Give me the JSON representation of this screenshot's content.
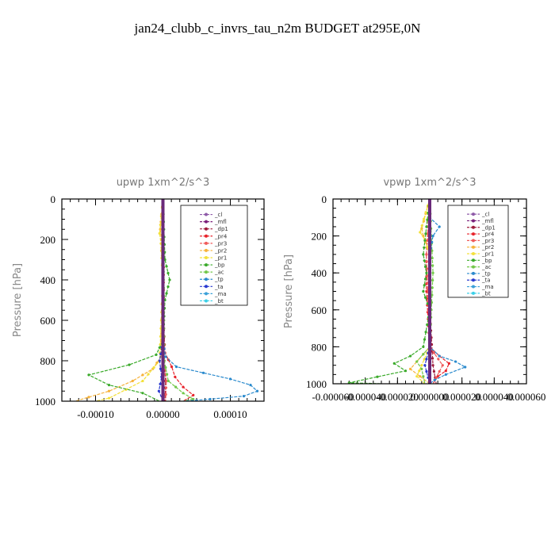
{
  "title": "jan24_clubb_c_invrs_tau_n2m  BUDGET at295E,0N",
  "legend_labels": [
    "_cl",
    "_mfl",
    "_dp1",
    "_pr4",
    "_pr3",
    "_pr2",
    "_pr1",
    "_bp",
    "_ac",
    "_tp",
    "_ta",
    "_ma",
    "_bt"
  ],
  "colors": {
    "_cl": "#8e5aa8",
    "_mfl": "#7a1f7a",
    "_dp1": "#9e1c3c",
    "_pr4": "#e8222a",
    "_pr3": "#f05a5a",
    "_pr2": "#f6b23a",
    "_pr1": "#f3e03a",
    "_bp": "#3aaa2a",
    "_ac": "#72c84a",
    "_tp": "#2a8acd",
    "_ta": "#2a3ad0",
    "_ma": "#3aa0d8",
    "_bt": "#3ad0e8"
  },
  "chart_data": [
    {
      "type": "line",
      "title": "upwp   1xm^2/s^3",
      "ylabel": "Pressure [hPa]",
      "ylim": [
        1000,
        0
      ],
      "xlim": [
        -0.00015,
        0.00015
      ],
      "xticks": [
        "-0.00010",
        "0.00000",
        "0.00010"
      ],
      "xtick_values": [
        -0.0001,
        0,
        0.0001
      ],
      "yticks": [
        "0",
        "200",
        "400",
        "600",
        "800",
        "1000"
      ],
      "legend_position": "top-right",
      "series": [
        {
          "name": "_cl",
          "points": [
            [
              0,
              0
            ],
            [
              0,
              1000
            ]
          ]
        },
        {
          "name": "_mfl",
          "points": [
            [
              0,
              0
            ],
            [
              0,
              1000
            ]
          ]
        },
        {
          "name": "_dp1",
          "points": [
            [
              0,
              0
            ],
            [
              0,
              500
            ],
            [
              2e-06,
              800
            ],
            [
              4e-06,
              900
            ],
            [
              3e-06,
              1000
            ]
          ]
        },
        {
          "name": "_pr4",
          "points": [
            [
              0,
              0
            ],
            [
              1e-06,
              300
            ],
            [
              1e-06,
              600
            ],
            [
              3e-06,
              760
            ],
            [
              1.3e-05,
              830
            ],
            [
              1.8e-05,
              880
            ],
            [
              3e-05,
              930
            ],
            [
              4.5e-05,
              970
            ],
            [
              3e-05,
              1000
            ]
          ]
        },
        {
          "name": "_pr3",
          "points": [
            [
              0,
              0
            ],
            [
              0,
              600
            ],
            [
              2e-06,
              800
            ],
            [
              5e-06,
              900
            ],
            [
              4e-06,
              1000
            ]
          ]
        },
        {
          "name": "_pr2",
          "points": [
            [
              0,
              0
            ],
            [
              -4e-06,
              150
            ],
            [
              -2e-06,
              200
            ],
            [
              0,
              400
            ],
            [
              -3e-06,
              780
            ],
            [
              -1.5e-05,
              840
            ],
            [
              -4.5e-05,
              900
            ],
            [
              -8e-05,
              950
            ],
            [
              -0.00011,
              980
            ],
            [
              -0.00013,
              1000
            ]
          ]
        },
        {
          "name": "_pr1",
          "points": [
            [
              0,
              0
            ],
            [
              -5e-06,
              170
            ],
            [
              -3e-06,
              220
            ],
            [
              0,
              400
            ],
            [
              -5e-06,
              800
            ],
            [
              -3e-05,
              900
            ],
            [
              -8e-05,
              985
            ],
            [
              -0.0001,
              1000
            ]
          ]
        },
        {
          "name": "_bp",
          "points": [
            [
              0,
              0
            ],
            [
              3e-06,
              300
            ],
            [
              1e-05,
              400
            ],
            [
              3e-06,
              500
            ],
            [
              0,
              700
            ],
            [
              -1e-05,
              770
            ],
            [
              -5e-05,
              820
            ],
            [
              -0.00011,
              870
            ],
            [
              -8e-05,
              920
            ],
            [
              -3e-05,
              960
            ],
            [
              -5e-06,
              1000
            ]
          ]
        },
        {
          "name": "_ac",
          "points": [
            [
              0,
              0
            ],
            [
              1e-06,
              400
            ],
            [
              2e-06,
              800
            ],
            [
              8e-06,
              900
            ],
            [
              3e-05,
              960
            ],
            [
              4.5e-05,
              990
            ],
            [
              3e-05,
              1000
            ]
          ]
        },
        {
          "name": "_tp",
          "points": [
            [
              0,
              0
            ],
            [
              0,
              700
            ],
            [
              4e-06,
              780
            ],
            [
              2e-05,
              830
            ],
            [
              6e-05,
              860
            ],
            [
              0.0001,
              890
            ],
            [
              0.00013,
              920
            ],
            [
              0.00014,
              950
            ],
            [
              0.00012,
              975
            ],
            [
              7e-05,
              990
            ],
            [
              3e-05,
              1000
            ]
          ]
        },
        {
          "name": "_ta",
          "points": [
            [
              0,
              0
            ],
            [
              0,
              700
            ],
            [
              -5e-06,
              800
            ],
            [
              -2e-06,
              880
            ],
            [
              -6e-06,
              950
            ],
            [
              0,
              1000
            ]
          ]
        },
        {
          "name": "_ma",
          "points": [
            [
              0,
              0
            ],
            [
              0,
              1000
            ]
          ]
        },
        {
          "name": "_bt",
          "points": [
            [
              0,
              0
            ],
            [
              0,
              1000
            ]
          ]
        }
      ]
    },
    {
      "type": "line",
      "title": "vpwp   1xm^2/s^3",
      "ylabel": "Pressure [hPa]",
      "ylim": [
        1000,
        0
      ],
      "xlim": [
        -6e-05,
        6e-05
      ],
      "xticks": [
        "-0.000060",
        "-0.000040",
        "-0.000020",
        "0.000000",
        "0.000020",
        "0.000040",
        "0.000060"
      ],
      "xtick_values": [
        -6e-05,
        -4e-05,
        -2e-05,
        0,
        2e-05,
        4e-05,
        6e-05
      ],
      "yticks": [
        "0",
        "200",
        "400",
        "600",
        "800",
        "1000"
      ],
      "legend_position": "top-right",
      "series": [
        {
          "name": "_cl",
          "points": [
            [
              0,
              0
            ],
            [
              0,
              1000
            ]
          ]
        },
        {
          "name": "_mfl",
          "points": [
            [
              0,
              0
            ],
            [
              0,
              1000
            ]
          ]
        },
        {
          "name": "_dp1",
          "points": [
            [
              0,
              0
            ],
            [
              0,
              600
            ],
            [
              2e-06,
              900
            ],
            [
              4e-06,
              1000
            ]
          ]
        },
        {
          "name": "_pr4",
          "points": [
            [
              0,
              0
            ],
            [
              -2e-06,
              300
            ],
            [
              -2e-06,
              500
            ],
            [
              0,
              800
            ],
            [
              6e-06,
              850
            ],
            [
              1.2e-05,
              890
            ],
            [
              1e-05,
              930
            ],
            [
              5e-06,
              960
            ],
            [
              2e-06,
              1000
            ]
          ]
        },
        {
          "name": "_pr3",
          "points": [
            [
              0,
              0
            ],
            [
              -2e-06,
              300
            ],
            [
              0,
              800
            ],
            [
              8e-06,
              900
            ],
            [
              2e-06,
              1000
            ]
          ]
        },
        {
          "name": "_pr2",
          "points": [
            [
              0,
              0
            ],
            [
              -5e-06,
              160
            ],
            [
              -4e-06,
              200
            ],
            [
              0,
              300
            ],
            [
              0,
              800
            ],
            [
              -8e-06,
              880
            ],
            [
              -1.2e-05,
              920
            ],
            [
              -6e-06,
              960
            ],
            [
              0,
              1000
            ]
          ]
        },
        {
          "name": "_pr1",
          "points": [
            [
              0,
              0
            ],
            [
              -6e-06,
              180
            ],
            [
              -3e-06,
              220
            ],
            [
              0,
              300
            ],
            [
              0,
              800
            ],
            [
              -5e-06,
              900
            ],
            [
              -8e-06,
              960
            ],
            [
              -3e-06,
              1000
            ]
          ]
        },
        {
          "name": "_bp",
          "points": [
            [
              0,
              0
            ],
            [
              -4e-06,
              300
            ],
            [
              -2e-06,
              400
            ],
            [
              -4e-06,
              500
            ],
            [
              0,
              600
            ],
            [
              -4e-06,
              800
            ],
            [
              -1.2e-05,
              850
            ],
            [
              -2.2e-05,
              890
            ],
            [
              -1.5e-05,
              930
            ],
            [
              -5e-05,
              995
            ],
            [
              -3e-05,
              1000
            ]
          ]
        },
        {
          "name": "_ac",
          "points": [
            [
              0,
              0
            ],
            [
              2e-06,
              400
            ],
            [
              0,
              800
            ],
            [
              -8e-06,
              880
            ],
            [
              -5e-06,
              920
            ],
            [
              -3e-06,
              1000
            ]
          ]
        },
        {
          "name": "_tp",
          "points": [
            [
              0,
              0
            ],
            [
              0,
              100
            ],
            [
              6e-06,
              150
            ],
            [
              2e-06,
              200
            ],
            [
              0,
              300
            ],
            [
              0,
              800
            ],
            [
              6e-06,
              850
            ],
            [
              1.6e-05,
              880
            ],
            [
              2.2e-05,
              910
            ],
            [
              1e-05,
              950
            ],
            [
              3e-06,
              980
            ],
            [
              0,
              1000
            ]
          ]
        },
        {
          "name": "_ta",
          "points": [
            [
              0,
              0
            ],
            [
              0,
              800
            ],
            [
              -3e-06,
              900
            ],
            [
              0,
              1000
            ]
          ]
        },
        {
          "name": "_ma",
          "points": [
            [
              0,
              0
            ],
            [
              0,
              1000
            ]
          ]
        },
        {
          "name": "_bt",
          "points": [
            [
              0,
              0
            ],
            [
              0,
              1000
            ]
          ]
        }
      ]
    }
  ]
}
